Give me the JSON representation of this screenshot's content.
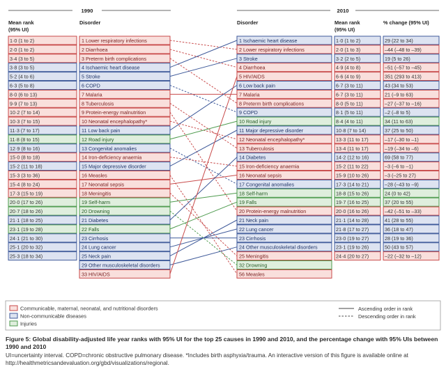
{
  "chart_data": {
    "type": "table",
    "headers": {
      "year_left": "1990",
      "year_right": "2010",
      "left_rank": [
        "Mean rank",
        "(95% UI)"
      ],
      "left_disorder": "Disorder",
      "right_disorder": "Disorder",
      "right_rank": [
        "Mean rank",
        "(95% UI)"
      ],
      "right_change": "% change (95% UI)"
    },
    "rows_1990": [
      {
        "rank": "1·0 (1 to 2)",
        "label": "1 Lower respiratory infections",
        "cat": "cmnn"
      },
      {
        "rank": "2·0 (1 to 2)",
        "label": "2 Diarrhoea",
        "cat": "cmnn"
      },
      {
        "rank": "3·4 (3 to 5)",
        "label": "3 Preterm birth complications",
        "cat": "cmnn"
      },
      {
        "rank": "3·8 (3 to 5)",
        "label": "4 Ischaemic heart disease",
        "cat": "ncd"
      },
      {
        "rank": "5·2 (4 to 6)",
        "label": "5 Stroke",
        "cat": "ncd"
      },
      {
        "rank": "6·3 (5 to 8)",
        "label": "6 COPD",
        "cat": "ncd"
      },
      {
        "rank": "8·0 (6 to 13)",
        "label": "7 Malaria",
        "cat": "cmnn"
      },
      {
        "rank": "9·9 (7 to 13)",
        "label": "8 Tuberculosis",
        "cat": "cmnn"
      },
      {
        "rank": "10·2 (7 to 14)",
        "label": "9 Protein-energy malnutrition",
        "cat": "cmnn"
      },
      {
        "rank": "10·3 (7 to 15)",
        "label": "10 Neonatal encephalopathy*",
        "cat": "cmnn"
      },
      {
        "rank": "11·3 (7 to 17)",
        "label": "11 Low back pain",
        "cat": "ncd"
      },
      {
        "rank": "11·8 (8 to 15)",
        "label": "12 Road injury",
        "cat": "inj"
      },
      {
        "rank": "12·9 (8 to 16)",
        "label": "13 Congenital anomalies",
        "cat": "ncd"
      },
      {
        "rank": "15·0 (8 to 18)",
        "label": "14 Iron-deficiency anaemia",
        "cat": "cmnn"
      },
      {
        "rank": "15·2 (11 to 18)",
        "label": "15 Major depressive disorder",
        "cat": "ncd"
      },
      {
        "rank": "15·3 (3 to 36)",
        "label": "16 Measles",
        "cat": "cmnn"
      },
      {
        "rank": "15·4 (8 to 24)",
        "label": "17 Neonatal sepsis",
        "cat": "cmnn"
      },
      {
        "rank": "17·3 (15 to 19)",
        "label": "18 Meningitis",
        "cat": "cmnn"
      },
      {
        "rank": "20·0 (17 to 26)",
        "label": "19 Self-harm",
        "cat": "inj"
      },
      {
        "rank": "20·7 (18 to 26)",
        "label": "20 Drowning",
        "cat": "inj"
      },
      {
        "rank": "21·1 (18 to 25)",
        "label": "21 Diabetes",
        "cat": "ncd"
      },
      {
        "rank": "23·1 (19 to 28)",
        "label": "22 Falls",
        "cat": "inj"
      },
      {
        "rank": "24·1 (21 to 30)",
        "label": "23 Cirrhosis",
        "cat": "ncd"
      },
      {
        "rank": "25·1 (20 to 32)",
        "label": "24 Lung cancer",
        "cat": "ncd"
      },
      {
        "rank": "25·3 (18 to 34)",
        "label": "25 Neck pain",
        "cat": "ncd"
      },
      {
        "rank": "",
        "label": "29 Other musculoskeletal disorders",
        "cat": "ncd"
      },
      {
        "rank": "",
        "label": "33 HIV/AIDS",
        "cat": "cmnn"
      }
    ],
    "rows_2010": [
      {
        "label": "1 Ischaemic heart disease",
        "rank": "1·0 (1 to 2)",
        "change": "29 (22 to 34)",
        "cat": "ncd"
      },
      {
        "label": "2 Lower respiratory infections",
        "rank": "2·0 (1 to 3)",
        "change": "–44 (–48 to –39)",
        "cat": "cmnn"
      },
      {
        "label": "3 Stroke",
        "rank": "3·2 (2 to 5)",
        "change": "19 (5 to 26)",
        "cat": "ncd"
      },
      {
        "label": "4 Diarrhoea",
        "rank": "4·9 (4 to 8)",
        "change": "–51 (–57 to –45)",
        "cat": "cmnn"
      },
      {
        "label": "5 HIV/AIDS",
        "rank": "6·6 (4 to 9)",
        "change": "351 (293 to 413)",
        "cat": "cmnn"
      },
      {
        "label": "6 Low back pain",
        "rank": "6·7 (3 to 11)",
        "change": "43 (34 to 53)",
        "cat": "ncd"
      },
      {
        "label": "7 Malaria",
        "rank": "6·7 (3 to 11)",
        "change": "21 (–9 to 63)",
        "cat": "cmnn"
      },
      {
        "label": "8 Preterm birth complications",
        "rank": "8·0 (5 to 11)",
        "change": "–27 (–37 to –16)",
        "cat": "cmnn"
      },
      {
        "label": "9 COPD",
        "rank": "8·1 (5 to 11)",
        "change": "–2 (–8 to 5)",
        "cat": "ncd"
      },
      {
        "label": "10 Road injury",
        "rank": "8·4 (4 to 11)",
        "change": "34 (11 to 63)",
        "cat": "inj"
      },
      {
        "label": "11 Major depressive disorder",
        "rank": "10·8 (7 to 14)",
        "change": "37 (25 to 50)",
        "cat": "ncd"
      },
      {
        "label": "12 Neonatal encephalopathy*",
        "rank": "13·3 (11 to 17)",
        "change": "–17 (–30 to –1)",
        "cat": "cmnn"
      },
      {
        "label": "13 Tuberculosis",
        "rank": "13·4 (11 to 17)",
        "change": "–19 (–34 to –6)",
        "cat": "cmnn"
      },
      {
        "label": "14 Diabetes",
        "rank": "14·2 (12 to 16)",
        "change": "69 (58 to 77)",
        "cat": "ncd"
      },
      {
        "label": "15 Iron-deficiency anaemia",
        "rank": "15·2 (11 to 22)",
        "change": "–3 (–6 to –1)",
        "cat": "cmnn"
      },
      {
        "label": "16 Neonatal sepsis",
        "rank": "15·9 (10 to 26)",
        "change": "–3 (–25 to 27)",
        "cat": "cmnn"
      },
      {
        "label": "17 Congenital anomalies",
        "rank": "17·3 (14 to 21)",
        "change": "–28 (–43 to –9)",
        "cat": "ncd"
      },
      {
        "label": "18 Self-harm",
        "rank": "18·8 (15 to 26)",
        "change": "24 (0 to 42)",
        "cat": "inj"
      },
      {
        "label": "19 Falls",
        "rank": "19·7 (16 to 25)",
        "change": "37 (20 to 55)",
        "cat": "inj"
      },
      {
        "label": "20 Protein-energy malnutrition",
        "rank": "20·0 (16 to 26)",
        "change": "–42 (–51 to –33)",
        "cat": "cmnn"
      },
      {
        "label": "21 Neck pain",
        "rank": "21·1 (14 to 28)",
        "change": "41 (28 to 55)",
        "cat": "ncd"
      },
      {
        "label": "22 Lung cancer",
        "rank": "21·8 (17 to 27)",
        "change": "36 (18 to 47)",
        "cat": "ncd"
      },
      {
        "label": "23 Cirrhosis",
        "rank": "23·0 (19 to 27)",
        "change": "28 (19 to 36)",
        "cat": "ncd"
      },
      {
        "label": "24 Other musculoskeletal disorders",
        "rank": "23·1 (19 to 26)",
        "change": "50 (43 to 57)",
        "cat": "ncd"
      },
      {
        "label": "25 Meningitis",
        "rank": "24·4 (20 to 27)",
        "change": "–22 (–32 to –12)",
        "cat": "cmnn"
      },
      {
        "label": "32 Drowning",
        "rank": "",
        "change": "",
        "cat": "inj"
      },
      {
        "label": "56 Measles",
        "rank": "",
        "change": "",
        "cat": "cmnn"
      }
    ],
    "links": [
      {
        "from": 1,
        "to": 2
      },
      {
        "from": 2,
        "to": 4
      },
      {
        "from": 3,
        "to": 8
      },
      {
        "from": 4,
        "to": 1
      },
      {
        "from": 5,
        "to": 3
      },
      {
        "from": 6,
        "to": 9
      },
      {
        "from": 7,
        "to": 7
      },
      {
        "from": 8,
        "to": 13
      },
      {
        "from": 9,
        "to": 20
      },
      {
        "from": 10,
        "to": 12
      },
      {
        "from": 11,
        "to": 6
      },
      {
        "from": 12,
        "to": 10
      },
      {
        "from": 13,
        "to": 17
      },
      {
        "from": 14,
        "to": 15
      },
      {
        "from": 15,
        "to": 11
      },
      {
        "from": 16,
        "to": 56
      },
      {
        "from": 17,
        "to": 16
      },
      {
        "from": 18,
        "to": 25
      },
      {
        "from": 19,
        "to": 18
      },
      {
        "from": 20,
        "to": 32
      },
      {
        "from": 21,
        "to": 14
      },
      {
        "from": 22,
        "to": 19
      },
      {
        "from": 23,
        "to": 23
      },
      {
        "from": 24,
        "to": 22
      },
      {
        "from": 25,
        "to": 21
      },
      {
        "from": 29,
        "to": 24
      },
      {
        "from": 33,
        "to": 5
      }
    ],
    "legend": {
      "categories": [
        {
          "key": "cmnn",
          "label": "Communicable, maternal, neonatal, and nutritional disorders"
        },
        {
          "key": "ncd",
          "label": "Non-communicable diseases"
        },
        {
          "key": "inj",
          "label": "Injuries"
        }
      ],
      "line_styles": [
        {
          "style": "solid",
          "label": "Ascending order in rank"
        },
        {
          "style": "dashed",
          "label": "Descending order in rank"
        }
      ]
    },
    "colors": {
      "cmnn_fill": "#f9dfdc",
      "cmnn_border": "#c84a4a",
      "cmnn_text": "#7a2020",
      "ncd_fill": "#dde3f1",
      "ncd_border": "#3f5a9a",
      "ncd_text": "#1f3468",
      "inj_fill": "#dfeedd",
      "inj_border": "#4d9a4d",
      "inj_text": "#235a23",
      "rule": "#6a6a6a"
    }
  },
  "caption": {
    "main": "Figure 5: Global disability-adjusted life year ranks with 95% UI for the top 25 causes in 1990 and 2010, and the percentage change with 95% UIs between 1990 and 2010",
    "note": "UI=uncertainty interval. COPD=chronic obstructive pulmonary disease. *Includes birth asphyxia/trauma. An interactive version of this figure is available online at http://healthmetricsandevaluation.org/gbd/visualizations/regional."
  }
}
